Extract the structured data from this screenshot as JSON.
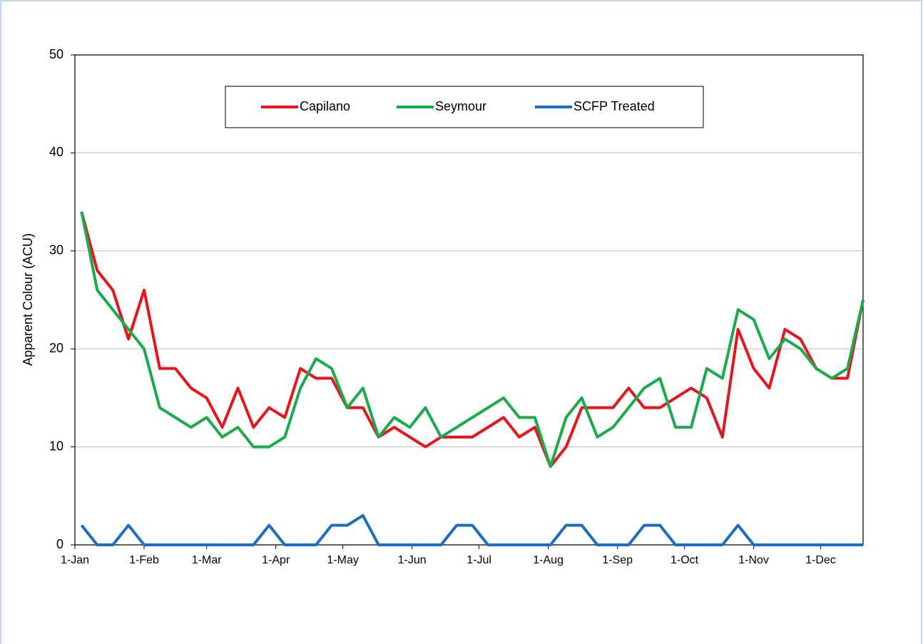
{
  "chart_data": {
    "type": "line",
    "y_label": "Apparent Colour (ACU)",
    "x": [
      3,
      10,
      17,
      24,
      31,
      38,
      45,
      52,
      59,
      66,
      73,
      80,
      87,
      94,
      101,
      108,
      115,
      122,
      129,
      136,
      143,
      150,
      157,
      164,
      171,
      178,
      185,
      192,
      199,
      206,
      213,
      220,
      227,
      234,
      241,
      248,
      255,
      262,
      269,
      276,
      283,
      290,
      297,
      304,
      311,
      318,
      325,
      332,
      339,
      346,
      353
    ],
    "series": [
      {
        "name": "Capilano",
        "color": "#e8141b",
        "values": [
          34,
          28,
          26,
          21,
          26,
          18,
          18,
          16,
          15,
          12,
          16,
          12,
          14,
          13,
          18,
          17,
          17,
          14,
          14,
          11,
          12,
          11,
          10,
          11,
          11,
          11,
          12,
          13,
          11,
          12,
          8,
          10,
          14,
          14,
          14,
          16,
          14,
          14,
          15,
          16,
          15,
          11,
          22,
          18,
          16,
          22,
          21,
          18,
          17,
          17,
          25
        ]
      },
      {
        "name": "Seymour",
        "color": "#1aab4b",
        "values": [
          34,
          26,
          24,
          22,
          20,
          14,
          13,
          12,
          13,
          11,
          12,
          10,
          10,
          11,
          16,
          19,
          18,
          14,
          16,
          11,
          13,
          12,
          14,
          11,
          12,
          13,
          14,
          15,
          13,
          13,
          8,
          13,
          15,
          11,
          12,
          14,
          16,
          17,
          12,
          12,
          18,
          17,
          24,
          23,
          19,
          21,
          20,
          18,
          17,
          18,
          25
        ]
      },
      {
        "name": "SCFP Treated",
        "color": "#1a6fc0",
        "values": [
          2,
          0,
          0,
          2,
          0,
          0,
          0,
          0,
          0,
          0,
          0,
          0,
          2,
          0,
          0,
          0,
          2,
          2,
          3,
          0,
          0,
          0,
          0,
          0,
          2,
          2,
          0,
          0,
          0,
          0,
          0,
          2,
          2,
          0,
          0,
          0,
          2,
          2,
          0,
          0,
          0,
          0,
          2,
          0,
          0,
          0,
          0,
          0,
          0,
          0,
          0
        ]
      }
    ],
    "xlim": [
      0,
      353
    ],
    "xticks": [
      {
        "value": 0,
        "label": "1-Jan"
      },
      {
        "value": 31,
        "label": "1-Feb"
      },
      {
        "value": 59,
        "label": "1-Mar"
      },
      {
        "value": 90,
        "label": "1-Apr"
      },
      {
        "value": 120,
        "label": "1-May"
      },
      {
        "value": 151,
        "label": "1-Jun"
      },
      {
        "value": 181,
        "label": "1-Jul"
      },
      {
        "value": 212,
        "label": "1-Aug"
      },
      {
        "value": 243,
        "label": "1-Sep"
      },
      {
        "value": 273,
        "label": "1-Oct"
      },
      {
        "value": 304,
        "label": "1-Nov"
      },
      {
        "value": 334,
        "label": "1-Dec"
      }
    ],
    "ylim": [
      0,
      50
    ],
    "yticks": [
      0,
      10,
      20,
      30,
      40,
      50
    ],
    "grid": true,
    "legend": "top"
  }
}
